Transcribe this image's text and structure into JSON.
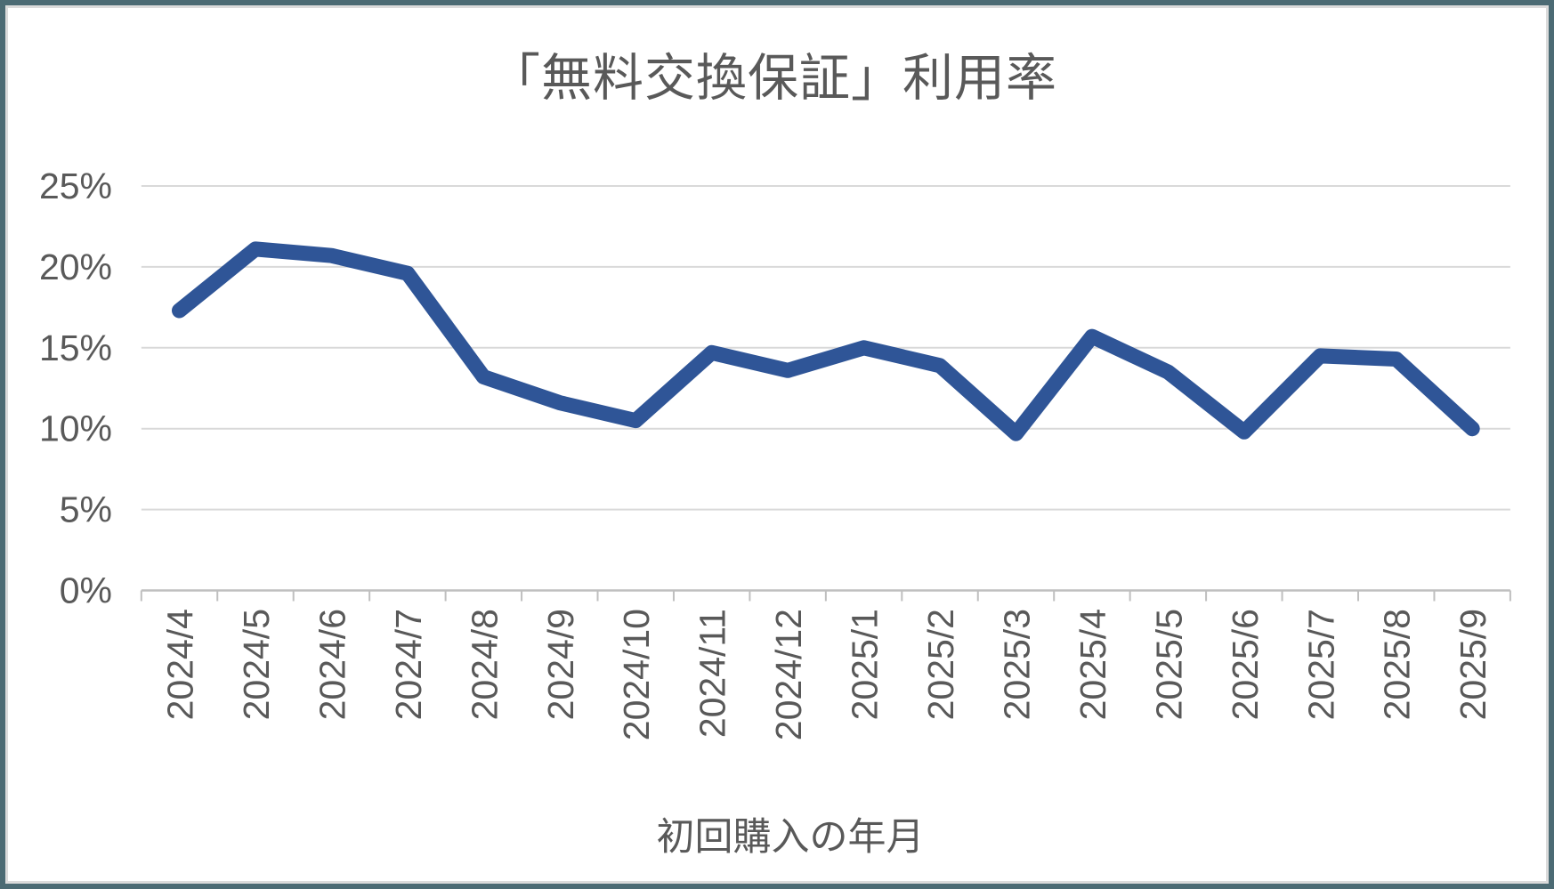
{
  "window": {
    "frame_color": "#4C6B74",
    "background_color": "#FFFFFF"
  },
  "chart_data": {
    "type": "line",
    "title": "「無料交換保証」利用率",
    "xlabel": "初回購入の年月",
    "ylabel": "",
    "categories": [
      "2024/4",
      "2024/5",
      "2024/6",
      "2024/7",
      "2024/8",
      "2024/9",
      "2024/10",
      "2024/11",
      "2024/12",
      "2025/1",
      "2025/2",
      "2025/3",
      "2025/4",
      "2025/5",
      "2025/6",
      "2025/7",
      "2025/8",
      "2025/9"
    ],
    "series": [
      {
        "name": "利用率",
        "values": [
          17.3,
          21.1,
          20.7,
          19.6,
          13.2,
          11.6,
          10.5,
          14.7,
          13.6,
          15.0,
          13.9,
          9.7,
          15.7,
          13.5,
          9.8,
          14.5,
          14.3,
          10.0
        ]
      }
    ],
    "ylim": [
      0,
      25
    ],
    "ytick_step": 5,
    "ytick_labels": [
      "0%",
      "5%",
      "10%",
      "15%",
      "20%",
      "25%"
    ],
    "xtick_rotation_degrees": 90,
    "grid": true,
    "legend": "none",
    "colors": {
      "line": "#2F5597",
      "text": "#595959",
      "gridline": "#D9D9D9",
      "axis": "#BFBFBF",
      "background": "#FFFFFF"
    }
  }
}
